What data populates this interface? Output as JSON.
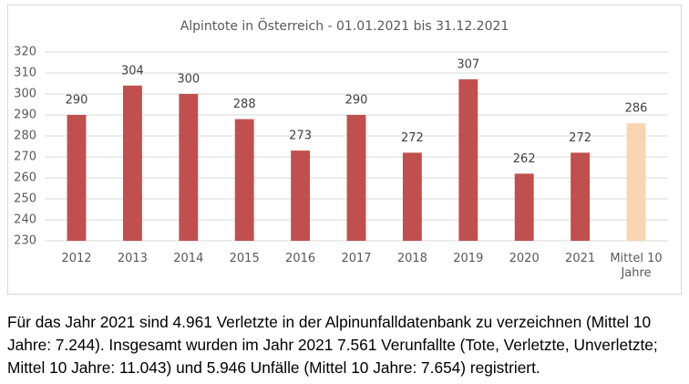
{
  "chart_data": {
    "type": "bar",
    "title": "Alpintote in Österreich - 01.01.2021 bis 31.12.2021",
    "categories": [
      "2012",
      "2013",
      "2014",
      "2015",
      "2016",
      "2017",
      "2018",
      "2019",
      "2020",
      "2021",
      "Mittel 10 Jahre"
    ],
    "values": [
      290,
      304,
      300,
      288,
      273,
      290,
      272,
      307,
      262,
      272,
      286
    ],
    "colors": [
      "#c0504d",
      "#c0504d",
      "#c0504d",
      "#c0504d",
      "#c0504d",
      "#c0504d",
      "#c0504d",
      "#c0504d",
      "#c0504d",
      "#c0504d",
      "#f9d5b4"
    ],
    "ylim": [
      230,
      320
    ],
    "yticks": [
      230,
      240,
      250,
      260,
      270,
      280,
      290,
      300,
      310,
      320
    ],
    "grid": true
  },
  "caption": "Für das Jahr 2021 sind 4.961 Verletzte in der Alpinunfalldatenbank zu verzeichnen (Mittel 10 Jahre: 7.244). Insgesamt wurden im Jahr 2021 7.561 Verunfallte (Tote, Verletzte, Unverletzte; Mittel 10 Jahre: 11.043) und 5.946 Unfälle (Mittel 10 Jahre: 7.654) registriert."
}
